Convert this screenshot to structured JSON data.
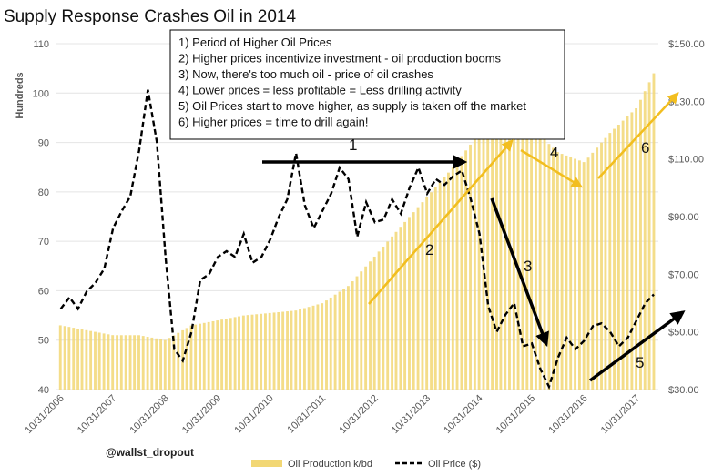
{
  "chart_data": {
    "type": "bar+line",
    "title": "Supply Response Crashes Oil in 2014",
    "ylabel_left": "Hundreds",
    "left_axis": {
      "min": 40,
      "max": 110,
      "ticks": [
        40,
        50,
        60,
        70,
        80,
        90,
        100,
        110
      ]
    },
    "right_axis": {
      "min": 30,
      "max": 150,
      "ticks": [
        "$30.00",
        "$50.00",
        "$70.00",
        "$90.00",
        "$110.00",
        "$130.00",
        "$150.00"
      ],
      "tick_values": [
        30,
        50,
        70,
        90,
        110,
        130,
        150
      ]
    },
    "x_range": [
      "2006-10-01",
      "2018-04-01"
    ],
    "x_ticks": [
      "10/31/2006",
      "10/31/2007",
      "10/31/2008",
      "10/31/2009",
      "10/31/2010",
      "10/31/2011",
      "10/31/2012",
      "10/31/2013",
      "10/31/2014",
      "10/31/2015",
      "10/31/2016",
      "10/31/2017"
    ],
    "x_tick_dates": [
      "2006-10-31",
      "2007-10-31",
      "2008-10-31",
      "2009-10-31",
      "2010-10-31",
      "2011-10-31",
      "2012-10-31",
      "2013-10-31",
      "2014-10-31",
      "2015-10-31",
      "2016-10-31",
      "2017-10-31"
    ],
    "legend": {
      "placement": "bottom",
      "items": [
        {
          "label": "Oil Production k/bd",
          "color": "#F2D774",
          "kind": "bar"
        },
        {
          "label": "Oil Price ($)",
          "color": "#000000",
          "kind": "dashed-line"
        }
      ]
    },
    "series": [
      {
        "name": "Oil Production k/bd",
        "axis": "left",
        "color": "#F2D774",
        "points": [
          [
            "2006-10-31",
            53
          ],
          [
            "2007-04-30",
            52
          ],
          [
            "2007-10-31",
            51
          ],
          [
            "2008-04-30",
            51
          ],
          [
            "2008-10-31",
            50
          ],
          [
            "2009-04-30",
            53
          ],
          [
            "2009-10-31",
            54
          ],
          [
            "2010-04-30",
            55
          ],
          [
            "2010-10-31",
            55.5
          ],
          [
            "2011-04-30",
            56
          ],
          [
            "2011-10-31",
            57.5
          ],
          [
            "2012-04-30",
            61
          ],
          [
            "2012-10-31",
            67
          ],
          [
            "2013-04-30",
            73
          ],
          [
            "2013-10-31",
            79
          ],
          [
            "2014-04-30",
            85
          ],
          [
            "2014-10-31",
            92
          ],
          [
            "2015-04-30",
            96
          ],
          [
            "2015-10-31",
            93
          ],
          [
            "2016-04-30",
            88
          ],
          [
            "2016-10-31",
            86
          ],
          [
            "2017-04-30",
            92
          ],
          [
            "2017-10-31",
            97
          ],
          [
            "2018-02-28",
            104
          ]
        ]
      },
      {
        "name": "Oil Price ($)",
        "axis": "right",
        "color": "#000000",
        "points": [
          [
            "2006-10-31",
            58
          ],
          [
            "2006-12-31",
            62
          ],
          [
            "2007-02-28",
            58
          ],
          [
            "2007-04-30",
            64
          ],
          [
            "2007-06-30",
            67
          ],
          [
            "2007-08-31",
            72
          ],
          [
            "2007-10-31",
            86
          ],
          [
            "2007-12-31",
            92
          ],
          [
            "2008-02-28",
            97
          ],
          [
            "2008-04-30",
            113
          ],
          [
            "2008-06-30",
            134
          ],
          [
            "2008-08-31",
            116
          ],
          [
            "2008-10-31",
            76
          ],
          [
            "2008-12-31",
            44
          ],
          [
            "2009-02-28",
            40
          ],
          [
            "2009-04-30",
            50
          ],
          [
            "2009-06-30",
            68
          ],
          [
            "2009-08-31",
            70
          ],
          [
            "2009-10-31",
            76
          ],
          [
            "2009-12-31",
            78
          ],
          [
            "2010-02-28",
            76
          ],
          [
            "2010-04-30",
            84
          ],
          [
            "2010-06-30",
            74
          ],
          [
            "2010-08-31",
            76
          ],
          [
            "2010-10-31",
            82
          ],
          [
            "2010-12-31",
            90
          ],
          [
            "2011-02-28",
            96
          ],
          [
            "2011-04-30",
            112
          ],
          [
            "2011-06-30",
            94
          ],
          [
            "2011-08-31",
            86
          ],
          [
            "2011-10-31",
            92
          ],
          [
            "2011-12-31",
            98
          ],
          [
            "2012-02-28",
            107
          ],
          [
            "2012-04-30",
            103
          ],
          [
            "2012-06-30",
            83
          ],
          [
            "2012-08-31",
            95
          ],
          [
            "2012-10-31",
            88
          ],
          [
            "2012-12-31",
            89
          ],
          [
            "2013-02-28",
            96
          ],
          [
            "2013-04-30",
            91
          ],
          [
            "2013-06-30",
            100
          ],
          [
            "2013-08-31",
            107
          ],
          [
            "2013-10-31",
            98
          ],
          [
            "2013-12-31",
            103
          ],
          [
            "2014-02-28",
            101
          ],
          [
            "2014-04-30",
            104
          ],
          [
            "2014-06-30",
            106
          ],
          [
            "2014-08-31",
            96
          ],
          [
            "2014-10-31",
            84
          ],
          [
            "2014-12-31",
            59
          ],
          [
            "2015-02-28",
            50
          ],
          [
            "2015-04-30",
            56
          ],
          [
            "2015-06-30",
            60
          ],
          [
            "2015-08-31",
            45
          ],
          [
            "2015-10-31",
            46
          ],
          [
            "2015-12-31",
            37
          ],
          [
            "2016-02-28",
            31
          ],
          [
            "2016-04-30",
            41
          ],
          [
            "2016-06-30",
            48
          ],
          [
            "2016-08-31",
            44
          ],
          [
            "2016-10-31",
            47
          ],
          [
            "2016-12-31",
            52
          ],
          [
            "2017-02-28",
            53
          ],
          [
            "2017-04-30",
            50
          ],
          [
            "2017-06-30",
            45
          ],
          [
            "2017-08-31",
            48
          ],
          [
            "2017-10-31",
            54
          ],
          [
            "2017-12-31",
            60
          ],
          [
            "2018-02-28",
            63
          ]
        ]
      }
    ],
    "annotations": {
      "notes": [
        "1) Period of Higher Oil Prices",
        "2) Higher prices incentivize investment - oil production booms",
        "3) Now, there's too much oil - price of oil crashes",
        "4) Lower prices = less profitable = Less drilling activity",
        "5) Oil Prices start to move higher, as supply is taken off the market",
        "6) Higher prices = time to drill again!"
      ],
      "markers": [
        "1",
        "2",
        "3",
        "4",
        "5",
        "6"
      ],
      "arrow_colors": {
        "black": "#000000",
        "gold": "#F2BE1F"
      }
    },
    "credit": "@wallst_dropout"
  }
}
